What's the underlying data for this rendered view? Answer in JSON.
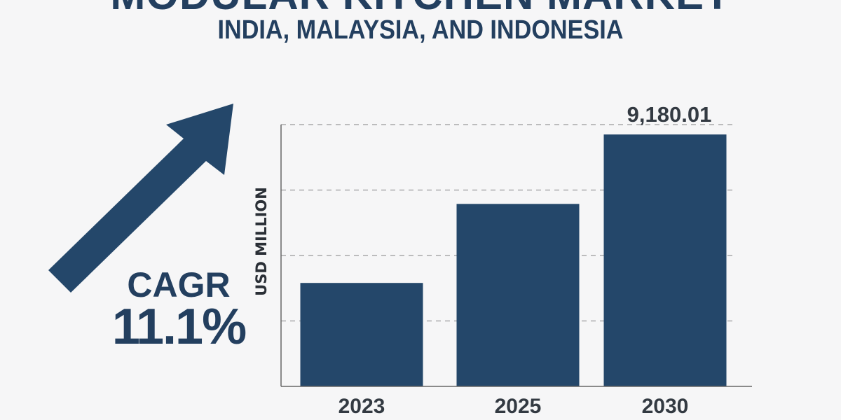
{
  "header": {
    "title": "MODULAR KITCHEN MARKET",
    "subtitle": "INDIA, MALAYSIA, AND INDONESIA"
  },
  "cagr": {
    "label": "CAGR",
    "value": "11.1%",
    "arrow_icon": "up-right-arrow-icon"
  },
  "colors": {
    "primary": "#24476a",
    "text": "#233f5f",
    "axis_text": "#333a42",
    "grid": "#9a9a9a"
  },
  "chart_data": {
    "type": "bar",
    "categories": [
      "2023",
      "2025",
      "2030"
    ],
    "values": [
      3770,
      6650,
      9180.01
    ],
    "data_labels": [
      "",
      "",
      "9,180.01"
    ],
    "title": "MODULAR KITCHEN MARKET",
    "xlabel": "",
    "ylabel": "USD MILLION",
    "ylim": [
      0,
      9540
    ],
    "grid": true,
    "grid_style": "dashed",
    "y_tick_labels_shown": false
  }
}
